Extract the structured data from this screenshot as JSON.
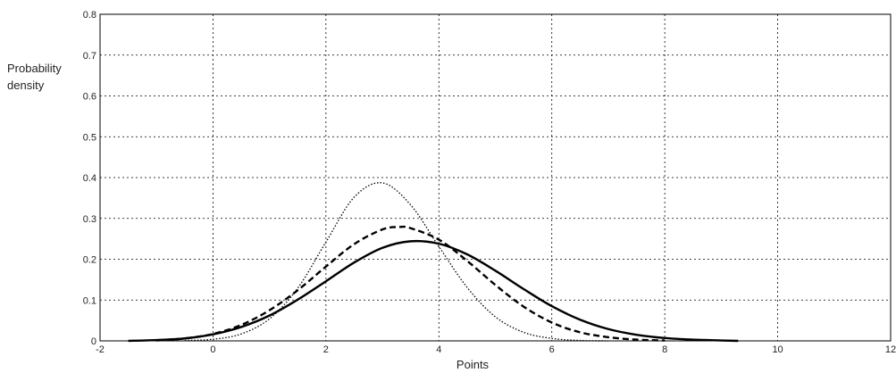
{
  "chart_data": {
    "type": "line",
    "title": "",
    "xlabel": "Points",
    "ylabel_lines": [
      "Probability",
      "density"
    ],
    "xlim": [
      -2,
      12
    ],
    "ylim": [
      0,
      0.8
    ],
    "xticks": [
      -2,
      0,
      2,
      4,
      6,
      8,
      10,
      12
    ],
    "yticks": [
      0,
      0.1,
      0.2,
      0.3,
      0.4,
      0.5,
      0.6,
      0.7,
      0.8
    ],
    "ytick_labels": [
      "0",
      "0.1",
      "0.2",
      "0.3",
      "0.4",
      "0.5",
      "0.6",
      "0.7",
      "0.8"
    ],
    "grid": true,
    "series": [
      {
        "style": "solid",
        "color": "#000000",
        "x": [
          -1.5,
          -1.0,
          -0.5,
          0.0,
          0.5,
          1.0,
          1.5,
          2.0,
          2.5,
          3.0,
          3.5,
          4.0,
          4.5,
          5.0,
          5.5,
          6.0,
          6.5,
          7.0,
          7.5,
          8.0,
          8.5,
          9.0,
          9.3
        ],
        "y": [
          0.0,
          0.002,
          0.006,
          0.016,
          0.034,
          0.062,
          0.101,
          0.146,
          0.192,
          0.228,
          0.244,
          0.238,
          0.212,
          0.172,
          0.127,
          0.085,
          0.052,
          0.029,
          0.015,
          0.007,
          0.003,
          0.001,
          0.0
        ]
      },
      {
        "style": "dashed",
        "color": "#000000",
        "x": [
          -1.0,
          -0.5,
          0.0,
          0.5,
          1.0,
          1.5,
          2.0,
          2.5,
          3.0,
          3.3,
          3.5,
          4.0,
          4.5,
          5.0,
          5.5,
          6.0,
          6.5,
          7.0,
          7.5,
          8.0
        ],
        "y": [
          0.001,
          0.006,
          0.017,
          0.039,
          0.075,
          0.124,
          0.182,
          0.237,
          0.273,
          0.279,
          0.276,
          0.248,
          0.196,
          0.137,
          0.084,
          0.045,
          0.021,
          0.009,
          0.003,
          0.001
        ]
      },
      {
        "style": "dotted",
        "color": "#000000",
        "x": [
          -0.5,
          0.0,
          0.5,
          1.0,
          1.5,
          2.0,
          2.5,
          3.0,
          3.5,
          4.0,
          4.5,
          5.0,
          5.5,
          6.0,
          6.5,
          7.0
        ],
        "y": [
          0.001,
          0.004,
          0.017,
          0.054,
          0.129,
          0.242,
          0.352,
          0.387,
          0.333,
          0.231,
          0.131,
          0.059,
          0.021,
          0.006,
          0.001,
          0.0
        ]
      }
    ]
  }
}
